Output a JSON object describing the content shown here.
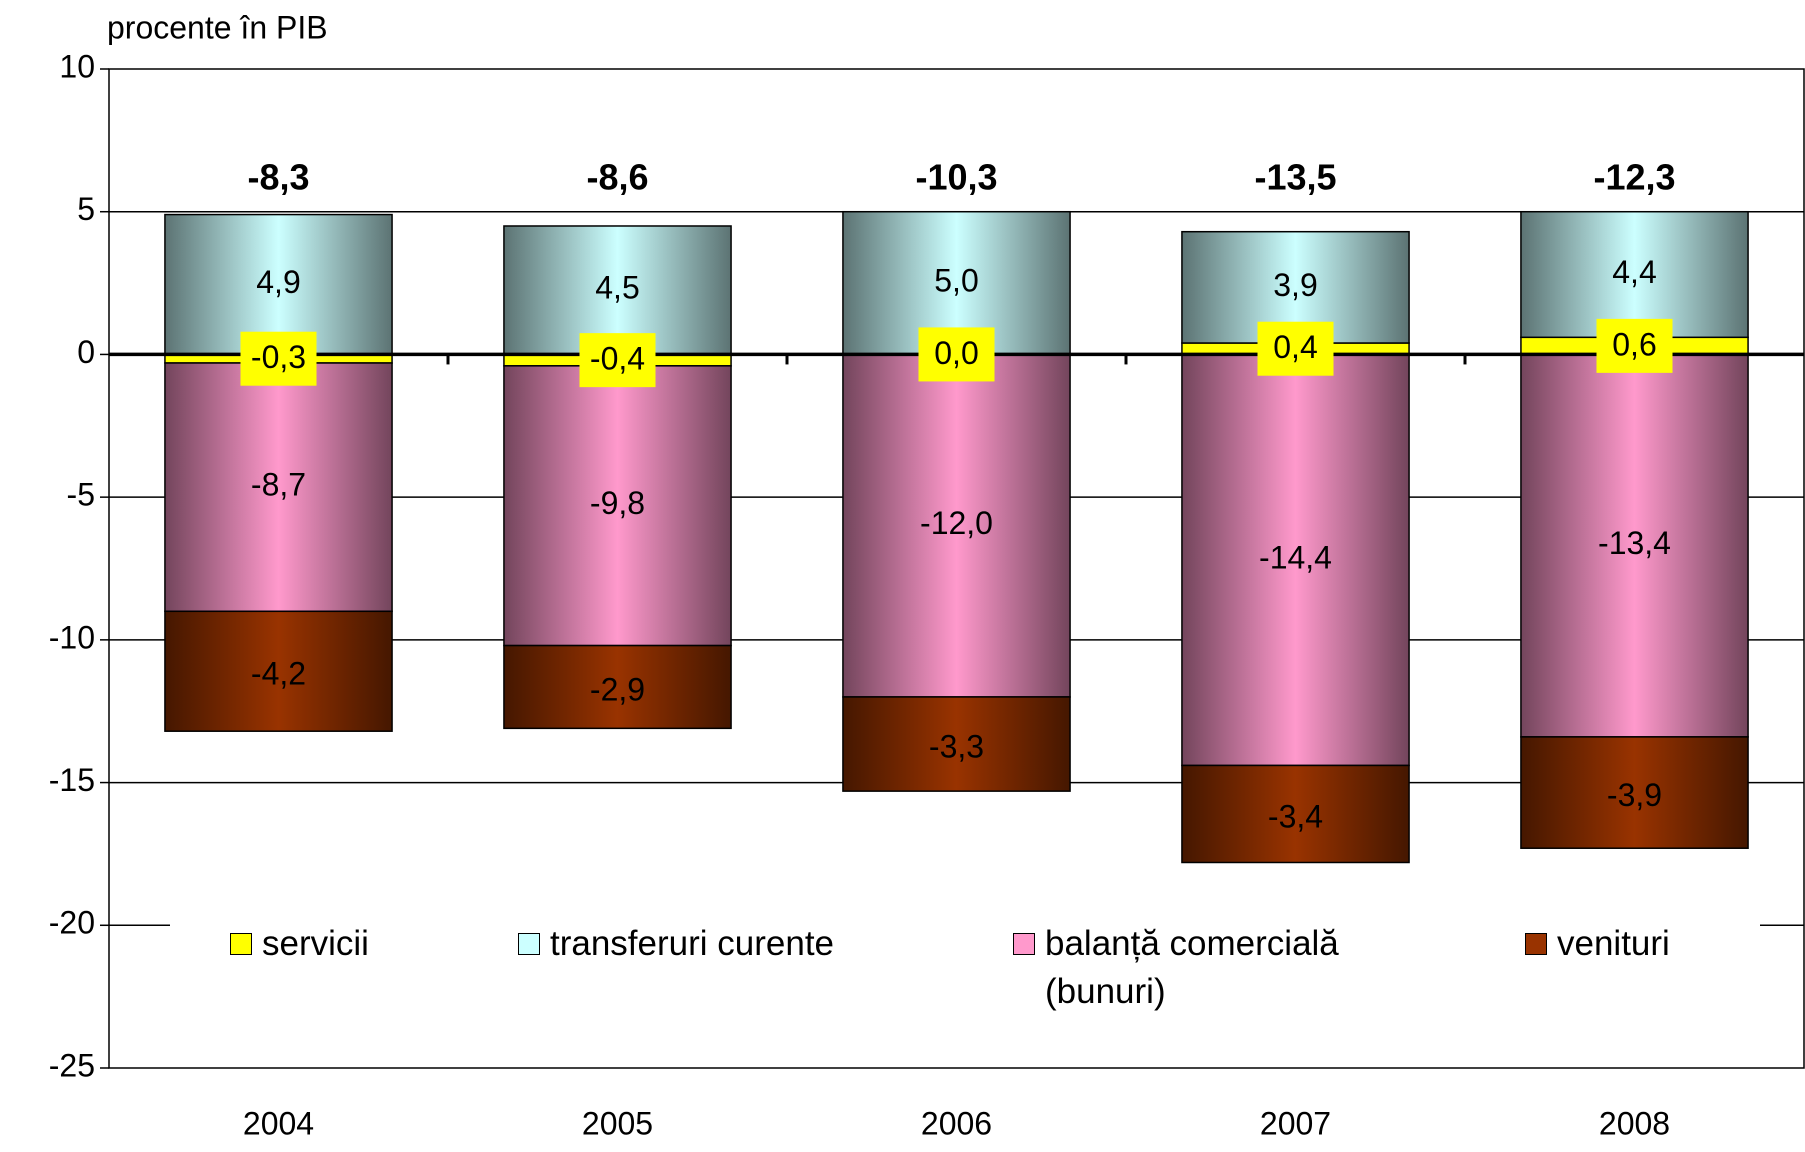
{
  "chart_data": {
    "type": "bar",
    "stacked": true,
    "y_axis_label": "procente în PIB",
    "categories": [
      "2004",
      "2005",
      "2006",
      "2007",
      "2008"
    ],
    "series": [
      {
        "name": "servicii",
        "color": "#ffff00",
        "values": [
          -0.3,
          -0.4,
          0.0,
          0.4,
          0.6
        ],
        "value_labels": [
          "-0,3",
          "-0,4",
          "0,0",
          "0,4",
          "0,6"
        ]
      },
      {
        "name": "transferuri curente",
        "color": "#ccffff",
        "values": [
          4.9,
          4.5,
          5.0,
          3.9,
          4.4
        ],
        "value_labels": [
          "4,9",
          "4,5",
          "5,0",
          "3,9",
          "4,4"
        ]
      },
      {
        "name": "balanță comercială (bunuri)",
        "color": "#ff99cc",
        "values": [
          -8.7,
          -9.8,
          -12.0,
          -14.4,
          -13.4
        ],
        "value_labels": [
          "-8,7",
          "-9,8",
          "-12,0",
          "-14,4",
          "-13,4"
        ]
      },
      {
        "name": "venituri",
        "color": "#993300",
        "values": [
          -4.2,
          -2.9,
          -3.3,
          -3.4,
          -3.9
        ],
        "value_labels": [
          "-4,2",
          "-2,9",
          "-3,3",
          "-3,4",
          "-3,9"
        ]
      }
    ],
    "totals": {
      "values": [
        -8.3,
        -8.6,
        -10.3,
        -13.5,
        -12.3
      ],
      "value_labels": [
        "-8,3",
        "-8,6",
        "-10,3",
        "-13,5",
        "-12,3"
      ]
    },
    "ylim": [
      -25,
      10
    ],
    "yticks": [
      -25,
      -20,
      -15,
      -10,
      -5,
      0,
      5,
      10
    ],
    "grid": true
  }
}
